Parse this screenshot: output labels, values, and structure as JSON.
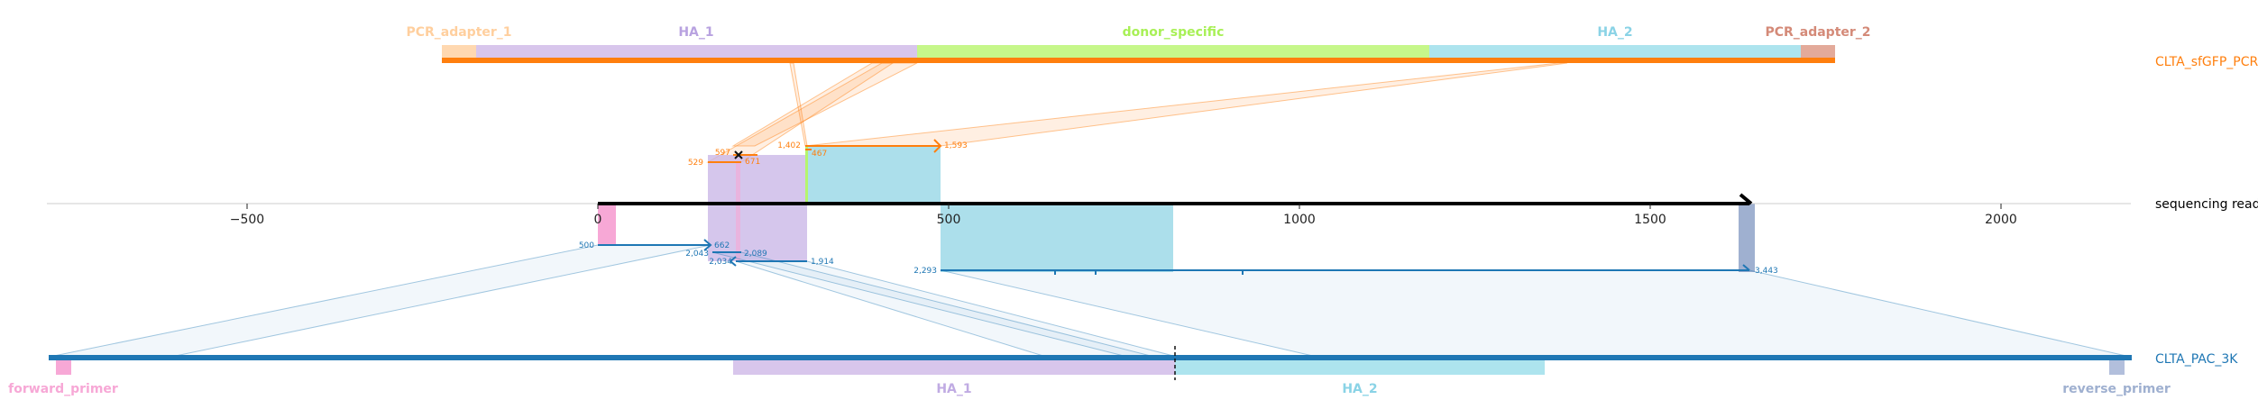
{
  "read": {
    "name": "sequencing read",
    "axis_ticks": [
      "−500",
      "0",
      "500",
      "1000",
      "1500",
      "2000"
    ]
  },
  "top_reference": {
    "name": "CLTA_sfGFP_PCR",
    "color": "#ff7f0e",
    "features": [
      {
        "label": "PCR_adapter_1",
        "color": "#ffd8b0"
      },
      {
        "label": "HA_1",
        "color": "#c7b3e5"
      },
      {
        "label": "donor_specific",
        "color": "#b5f56e"
      },
      {
        "label": "HA_2",
        "color": "#9ed9e8"
      },
      {
        "label": "PCR_adapter_2",
        "color": "#d99a8a"
      }
    ],
    "alignment_labels": [
      "529",
      "597",
      "671",
      "1,402",
      "467",
      "1,593"
    ]
  },
  "bottom_reference": {
    "name": "CLTA_PAC_3K",
    "color": "#1f77b4",
    "features": [
      {
        "label": "forward_primer",
        "color": "#f7a8d6"
      },
      {
        "label": "HA_1",
        "color": "#c7b3e5"
      },
      {
        "label": "HA_2",
        "color": "#9ed9e8"
      },
      {
        "label": "reverse_primer",
        "color": "#9fb0d0"
      }
    ],
    "alignment_labels": [
      "500",
      "662",
      "2,043",
      "2,089",
      "2,034",
      "1,914",
      "2,293",
      "3,443"
    ]
  }
}
